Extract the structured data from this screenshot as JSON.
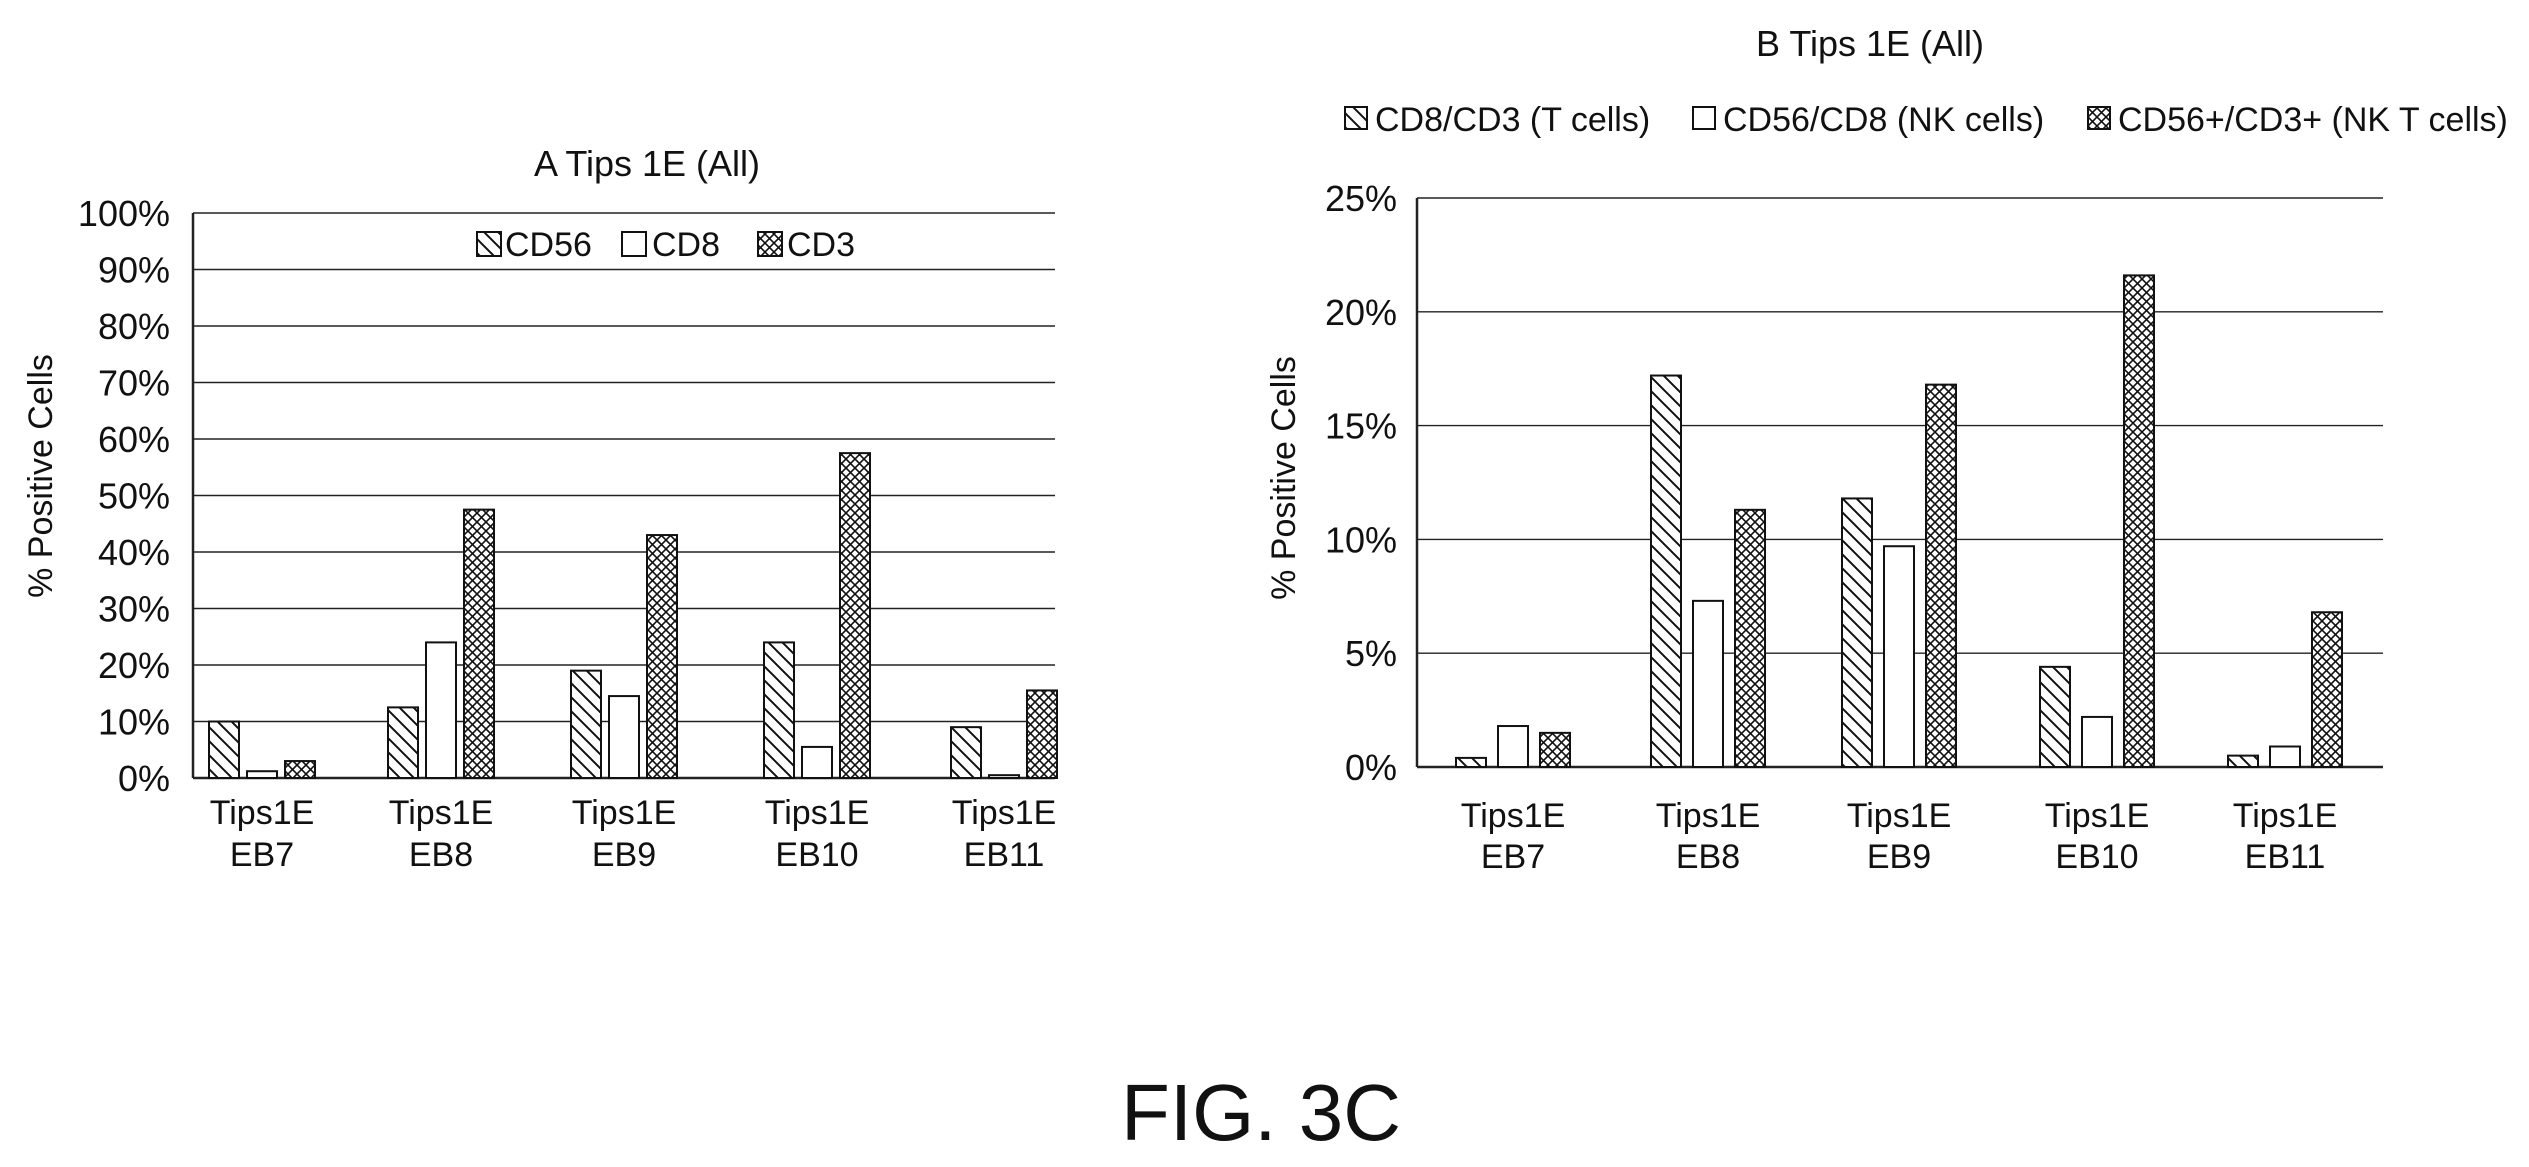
{
  "figure_caption": "FIG. 3C",
  "colors": {
    "ink": "#111111",
    "grid": "#222222",
    "background": "#ffffff"
  },
  "chart_data": [
    {
      "type": "bar",
      "title": "A Tips 1E (All)",
      "xlabel": "",
      "ylabel": "% Positive Cells",
      "ylim": [
        0,
        100
      ],
      "yticks": [
        "0%",
        "10%",
        "20%",
        "30%",
        "40%",
        "50%",
        "60%",
        "70%",
        "80%",
        "90%",
        "100%"
      ],
      "categories": [
        [
          "Tips1E",
          "EB7"
        ],
        [
          "Tips1E",
          "EB8"
        ],
        [
          "Tips1E",
          "EB9"
        ],
        [
          "Tips1E",
          "EB10"
        ],
        [
          "Tips1E",
          "EB11"
        ]
      ],
      "grid": true,
      "legend_position": "top-center-inside",
      "series": [
        {
          "name": "CD56",
          "pattern": "diagonal",
          "values": [
            10,
            12.5,
            19,
            24,
            9
          ]
        },
        {
          "name": "CD8",
          "pattern": "empty",
          "values": [
            1.2,
            24,
            14.5,
            5.5,
            0.5
          ]
        },
        {
          "name": "CD3",
          "pattern": "crosshatch",
          "values": [
            3,
            47.5,
            43,
            57.5,
            15.5
          ]
        }
      ]
    },
    {
      "type": "bar",
      "title": "B Tips 1E (All)",
      "xlabel": "",
      "ylabel": "% Positive Cells",
      "ylim": [
        0,
        25
      ],
      "yticks": [
        "0%",
        "5%",
        "10%",
        "15%",
        "20%",
        "25%"
      ],
      "categories": [
        [
          "Tips1E",
          "EB7"
        ],
        [
          "Tips1E",
          "EB8"
        ],
        [
          "Tips1E",
          "EB9"
        ],
        [
          "Tips1E",
          "EB10"
        ],
        [
          "Tips1E",
          "EB11"
        ]
      ],
      "grid": true,
      "legend_position": "top-outside",
      "series": [
        {
          "name": "CD8/CD3 (T cells)",
          "pattern": "diagonal",
          "values": [
            0.4,
            17.2,
            11.8,
            4.4,
            0.5
          ]
        },
        {
          "name": "CD56/CD8 (NK cells)",
          "pattern": "empty",
          "values": [
            1.8,
            7.3,
            9.7,
            2.2,
            0.9
          ]
        },
        {
          "name": "CD56+/CD3+ (NK T cells)",
          "pattern": "crosshatch",
          "values": [
            1.5,
            11.3,
            16.8,
            21.6,
            6.8
          ]
        }
      ]
    }
  ]
}
